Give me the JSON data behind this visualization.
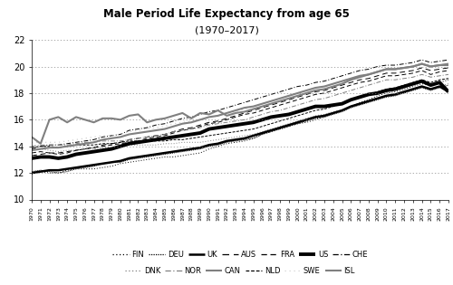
{
  "title": "Male Period Life Expectancy from age 65",
  "subtitle": "(1970–2017)",
  "years": [
    1970,
    1971,
    1972,
    1973,
    1974,
    1975,
    1976,
    1977,
    1978,
    1979,
    1980,
    1981,
    1982,
    1983,
    1984,
    1985,
    1986,
    1987,
    1988,
    1989,
    1990,
    1991,
    1992,
    1993,
    1994,
    1995,
    1996,
    1997,
    1998,
    1999,
    2000,
    2001,
    2002,
    2003,
    2004,
    2005,
    2006,
    2007,
    2008,
    2009,
    2010,
    2011,
    2012,
    2013,
    2014,
    2015,
    2016,
    2017
  ],
  "series": {
    "FIN": [
      11.9,
      12.1,
      12.0,
      12.0,
      12.2,
      12.3,
      12.3,
      12.3,
      12.4,
      12.5,
      12.7,
      12.8,
      12.9,
      13.0,
      13.1,
      13.2,
      13.2,
      13.3,
      13.4,
      13.5,
      13.8,
      14.0,
      14.2,
      14.3,
      14.4,
      14.6,
      14.9,
      15.1,
      15.3,
      15.5,
      15.7,
      15.8,
      16.0,
      16.2,
      16.5,
      16.7,
      17.0,
      17.3,
      17.5,
      17.8,
      18.0,
      18.1,
      18.3,
      18.5,
      18.7,
      18.6,
      18.8,
      19.0
    ],
    "DEU": [
      12.1,
      12.2,
      12.1,
      12.0,
      12.1,
      12.3,
      12.4,
      12.5,
      12.7,
      12.8,
      12.8,
      13.0,
      13.1,
      13.2,
      13.3,
      13.4,
      13.5,
      13.6,
      13.7,
      13.8,
      14.0,
      14.1,
      14.3,
      14.4,
      14.5,
      14.6,
      14.9,
      15.1,
      15.3,
      15.5,
      15.7,
      15.9,
      16.1,
      16.2,
      16.4,
      16.6,
      16.9,
      17.1,
      17.3,
      17.5,
      17.7,
      17.8,
      18.0,
      18.2,
      18.4,
      18.2,
      18.4,
      18.6
    ],
    "UK": [
      12.0,
      12.1,
      12.2,
      12.2,
      12.3,
      12.4,
      12.5,
      12.6,
      12.7,
      12.8,
      12.9,
      13.1,
      13.2,
      13.3,
      13.4,
      13.5,
      13.6,
      13.7,
      13.8,
      13.9,
      14.1,
      14.2,
      14.4,
      14.5,
      14.6,
      14.8,
      15.0,
      15.2,
      15.4,
      15.6,
      15.8,
      16.0,
      16.2,
      16.3,
      16.5,
      16.7,
      17.0,
      17.2,
      17.4,
      17.6,
      17.8,
      17.9,
      18.1,
      18.3,
      18.5,
      18.3,
      18.5,
      18.1
    ],
    "AUS": [
      13.3,
      13.4,
      13.5,
      13.5,
      13.6,
      13.7,
      13.8,
      13.9,
      14.1,
      14.2,
      14.3,
      14.5,
      14.6,
      14.7,
      14.8,
      14.9,
      15.1,
      15.3,
      15.4,
      15.6,
      15.8,
      15.9,
      16.1,
      16.3,
      16.5,
      16.7,
      16.9,
      17.1,
      17.3,
      17.5,
      17.7,
      17.9,
      18.1,
      18.2,
      18.4,
      18.6,
      18.8,
      19.0,
      19.1,
      19.3,
      19.5,
      19.5,
      19.6,
      19.7,
      19.9,
      19.7,
      19.8,
      19.9
    ],
    "FRA": [
      13.5,
      13.6,
      13.5,
      13.4,
      13.5,
      13.7,
      13.8,
      13.9,
      14.0,
      14.1,
      14.2,
      14.3,
      14.4,
      14.6,
      14.7,
      14.8,
      15.0,
      15.2,
      15.3,
      15.5,
      15.7,
      15.8,
      16.0,
      16.2,
      16.4,
      16.5,
      16.7,
      16.9,
      17.1,
      17.3,
      17.5,
      17.7,
      17.9,
      18.0,
      18.2,
      18.4,
      18.6,
      18.8,
      18.9,
      19.1,
      19.3,
      19.3,
      19.4,
      19.5,
      19.7,
      19.4,
      19.6,
      19.7
    ],
    "US": [
      13.1,
      13.2,
      13.2,
      13.1,
      13.2,
      13.4,
      13.5,
      13.6,
      13.7,
      13.8,
      14.0,
      14.2,
      14.3,
      14.4,
      14.5,
      14.6,
      14.7,
      14.8,
      14.9,
      15.0,
      15.3,
      15.4,
      15.5,
      15.6,
      15.7,
      15.8,
      16.0,
      16.2,
      16.3,
      16.4,
      16.6,
      16.8,
      17.0,
      17.0,
      17.1,
      17.2,
      17.5,
      17.7,
      17.9,
      18.0,
      18.2,
      18.3,
      18.5,
      18.7,
      18.9,
      18.6,
      18.8,
      18.1
    ],
    "CHE": [
      13.8,
      14.0,
      14.1,
      14.1,
      14.2,
      14.3,
      14.4,
      14.5,
      14.7,
      14.8,
      14.9,
      15.2,
      15.3,
      15.4,
      15.6,
      15.7,
      15.9,
      16.1,
      16.2,
      16.4,
      16.6,
      16.7,
      16.9,
      17.1,
      17.3,
      17.5,
      17.7,
      17.9,
      18.1,
      18.3,
      18.5,
      18.6,
      18.8,
      18.9,
      19.1,
      19.3,
      19.5,
      19.7,
      19.8,
      20.0,
      20.1,
      20.1,
      20.2,
      20.3,
      20.5,
      20.3,
      20.4,
      20.5
    ],
    "DNK": [
      13.8,
      13.8,
      13.7,
      13.6,
      13.7,
      13.7,
      13.8,
      13.8,
      13.9,
      13.9,
      14.0,
      14.1,
      14.1,
      14.1,
      14.1,
      14.2,
      14.2,
      14.3,
      14.3,
      14.3,
      14.4,
      14.5,
      14.6,
      14.7,
      14.8,
      14.9,
      15.1,
      15.3,
      15.5,
      15.7,
      15.9,
      16.1,
      16.3,
      16.4,
      16.6,
      16.7,
      17.0,
      17.2,
      17.4,
      17.6,
      17.8,
      17.9,
      18.1,
      18.3,
      18.5,
      18.3,
      18.5,
      18.7
    ],
    "NOR": [
      14.0,
      14.1,
      14.1,
      14.1,
      14.1,
      14.2,
      14.3,
      14.3,
      14.4,
      14.4,
      14.4,
      14.5,
      14.6,
      14.7,
      14.8,
      14.9,
      15.1,
      15.2,
      15.3,
      15.4,
      15.6,
      15.7,
      15.8,
      15.9,
      16.0,
      16.2,
      16.4,
      16.6,
      16.7,
      16.9,
      17.1,
      17.3,
      17.5,
      17.6,
      17.8,
      18.0,
      18.2,
      18.4,
      18.6,
      18.8,
      19.0,
      19.0,
      19.1,
      19.2,
      19.4,
      19.2,
      19.3,
      19.4
    ],
    "CAN": [
      13.7,
      13.8,
      13.9,
      13.9,
      14.0,
      14.1,
      14.2,
      14.3,
      14.5,
      14.6,
      14.7,
      14.9,
      15.0,
      15.1,
      15.2,
      15.3,
      15.5,
      15.7,
      15.8,
      16.0,
      16.2,
      16.3,
      16.5,
      16.7,
      16.9,
      17.0,
      17.2,
      17.4,
      17.6,
      17.8,
      18.0,
      18.2,
      18.4,
      18.5,
      18.7,
      18.9,
      19.1,
      19.3,
      19.4,
      19.6,
      19.8,
      19.8,
      19.9,
      20.0,
      20.2,
      20.0,
      20.1,
      20.2
    ],
    "NLD": [
      13.9,
      14.0,
      14.0,
      13.9,
      14.0,
      14.1,
      14.1,
      14.1,
      14.2,
      14.2,
      14.3,
      14.4,
      14.4,
      14.4,
      14.4,
      14.4,
      14.5,
      14.5,
      14.6,
      14.7,
      14.8,
      14.9,
      15.0,
      15.1,
      15.2,
      15.3,
      15.5,
      15.7,
      15.9,
      16.1,
      16.3,
      16.5,
      16.7,
      16.8,
      17.0,
      17.2,
      17.5,
      17.7,
      17.9,
      18.1,
      18.3,
      18.4,
      18.6,
      18.8,
      19.0,
      18.8,
      19.0,
      19.1
    ],
    "SWE": [
      14.3,
      14.3,
      14.3,
      14.3,
      14.4,
      14.5,
      14.6,
      14.7,
      14.8,
      14.8,
      14.9,
      15.1,
      15.2,
      15.3,
      15.4,
      15.5,
      15.7,
      15.8,
      15.9,
      16.0,
      16.2,
      16.3,
      16.5,
      16.6,
      16.8,
      17.0,
      17.2,
      17.4,
      17.6,
      17.8,
      18.0,
      18.2,
      18.4,
      18.5,
      18.7,
      18.9,
      19.1,
      19.3,
      19.4,
      19.6,
      19.8,
      19.8,
      19.9,
      20.0,
      20.2,
      20.0,
      20.1,
      20.2
    ],
    "ISL": [
      14.7,
      14.2,
      16.0,
      16.2,
      15.8,
      16.2,
      16.0,
      15.8,
      16.1,
      16.1,
      16.0,
      16.3,
      16.4,
      15.8,
      16.0,
      16.1,
      16.3,
      16.5,
      16.1,
      16.5,
      16.4,
      16.7,
      16.3,
      16.5,
      16.6,
      16.8,
      17.0,
      17.2,
      17.4,
      17.6,
      17.8,
      18.0,
      18.2,
      18.3,
      18.5,
      18.7,
      19.0,
      19.2,
      19.4,
      19.6,
      19.8,
      19.8,
      19.9,
      20.0,
      20.2,
      20.0,
      20.1,
      20.1
    ]
  },
  "line_styles": {
    "FIN": {
      "color": "black",
      "lw": 0.7,
      "ls": "dotted"
    },
    "DEU": {
      "color": "black",
      "lw": 0.7,
      "ls": "densely dotted"
    },
    "UK": {
      "color": "black",
      "lw": 1.8,
      "ls": "solid"
    },
    "AUS": {
      "color": "black",
      "lw": 0.7,
      "ls": "loosely dashed"
    },
    "FRA": {
      "color": "black",
      "lw": 0.7,
      "ls": "dashed"
    },
    "US": {
      "color": "black",
      "lw": 2.8,
      "ls": "solid"
    },
    "CHE": {
      "color": "black",
      "lw": 0.7,
      "ls": "dashdot"
    },
    "DNK": {
      "color": "gray",
      "lw": 0.7,
      "ls": "dotted"
    },
    "NOR": {
      "color": "gray",
      "lw": 0.7,
      "ls": "dashdot"
    },
    "CAN": {
      "color": "gray",
      "lw": 1.5,
      "ls": "solid"
    },
    "NLD": {
      "color": "black",
      "lw": 0.7,
      "ls": "densely dashed"
    },
    "SWE": {
      "color": "lightgray",
      "lw": 0.9,
      "ls": "loosely dotted"
    },
    "ISL": {
      "color": "gray",
      "lw": 1.5,
      "ls": "solid"
    }
  },
  "ylim": [
    10,
    22
  ],
  "yticks": [
    10,
    12,
    14,
    16,
    18,
    20,
    22
  ],
  "legend_row1": [
    "FIN",
    "DEU",
    "UK",
    "AUS",
    "FRA",
    "US",
    "CHE"
  ],
  "legend_row2": [
    "DNK",
    "NOR",
    "CAN",
    "NLD",
    "SWE",
    "ISL"
  ]
}
